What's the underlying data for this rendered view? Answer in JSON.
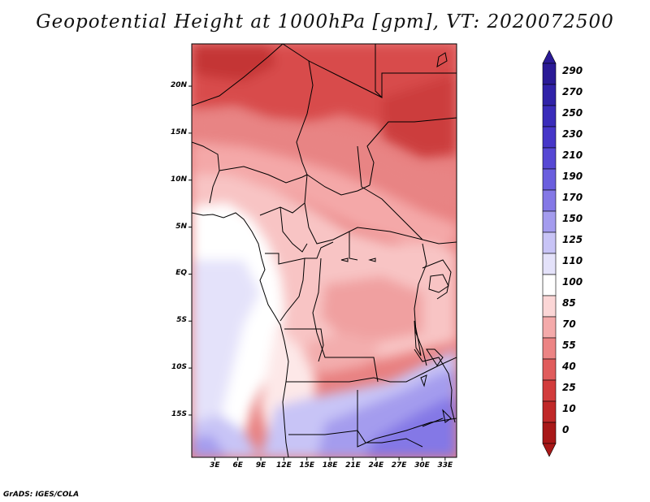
{
  "title": "Geopotential Height at 1000hPa [gpm], VT: 2020072500",
  "map": {
    "region": "Central Africa",
    "lat_ticks": [
      "20N",
      "15N",
      "10N",
      "5N",
      "EQ",
      "5S",
      "10S",
      "15S"
    ],
    "lon_ticks": [
      "3E",
      "6E",
      "9E",
      "12E",
      "15E",
      "18E",
      "21E",
      "24E",
      "27E",
      "30E",
      "33E"
    ],
    "lon_range": [
      0,
      34.5
    ],
    "lat_range": [
      -19.5,
      24.5
    ]
  },
  "colorbar": {
    "levels": [
      "290",
      "270",
      "250",
      "230",
      "210",
      "190",
      "170",
      "150",
      "125",
      "110",
      "100",
      "85",
      "70",
      "55",
      "40",
      "25",
      "10",
      "0"
    ],
    "colors": [
      "#2a1a96",
      "#3022a8",
      "#3a2cba",
      "#4636c8",
      "#5648d4",
      "#6a5ede",
      "#8478e6",
      "#a49cee",
      "#c8c4f6",
      "#e4e2fa",
      "#ffffff",
      "#fbd6d6",
      "#f4aaaa",
      "#ec8484",
      "#e05c5c",
      "#d23c3c",
      "#c02828",
      "#a81818"
    ]
  },
  "credit": "GrADS: IGES/COLA"
}
